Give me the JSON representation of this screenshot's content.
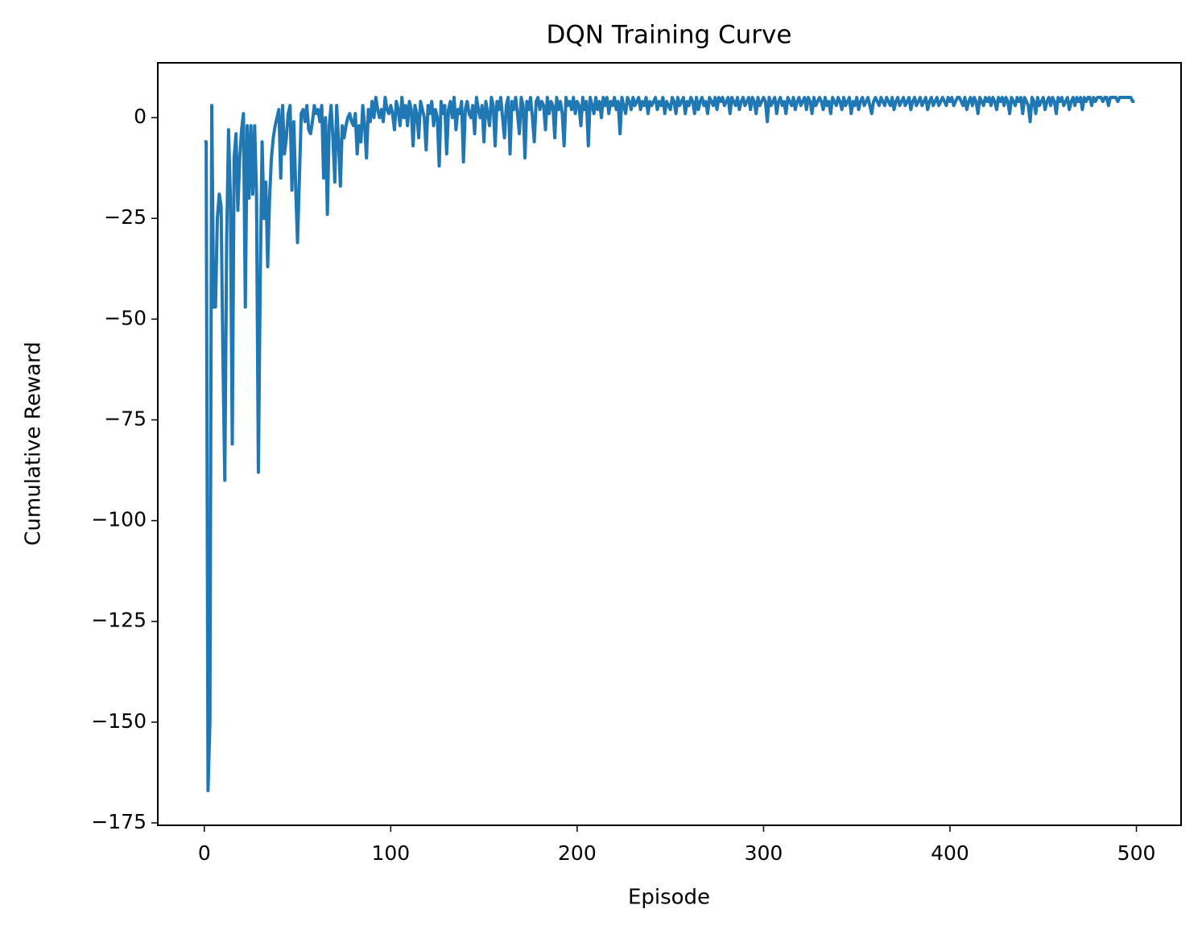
{
  "chart_data": {
    "type": "line",
    "title": "DQN Training Curve",
    "x_label": "Episode",
    "y_label": "Cumulative Reward",
    "xlim": [
      -24.95,
      523.95
    ],
    "xticks": [
      0,
      100,
      200,
      300,
      400,
      500
    ],
    "ylim": [
      -175.6,
      13.6
    ],
    "yticks": [
      0,
      {
        "value": -25,
        "label": "−25"
      },
      {
        "value": -50,
        "label": "−50"
      },
      {
        "value": -75,
        "label": "−75"
      },
      {
        "value": -100,
        "label": "−100"
      },
      {
        "value": -125,
        "label": "−125"
      },
      {
        "value": -150,
        "label": "−150"
      },
      {
        "value": -175,
        "label": "−175"
      }
    ],
    "color": "#1f77b4",
    "grid": false,
    "values": [
      -6,
      -6,
      -167,
      -150,
      3,
      -47,
      -47,
      -25,
      -19,
      -22,
      -60,
      -90,
      -30,
      -3,
      -20,
      -81,
      -10,
      -4,
      -23,
      -10,
      -3,
      1,
      -47,
      -2,
      -20,
      -2,
      -19,
      -2,
      -19,
      -88,
      -40,
      -6,
      -25,
      -16,
      -37,
      -20,
      -10,
      -5,
      -2,
      0,
      2,
      -15,
      3,
      -9,
      -5,
      1,
      3,
      -18,
      -1,
      -17,
      -31,
      -15,
      1,
      2,
      -1,
      3,
      -3,
      -4,
      -1,
      3,
      1,
      2,
      -1,
      3,
      -15,
      0,
      -24,
      -2,
      3,
      -5,
      -16,
      3,
      -6,
      -17,
      -2,
      -5,
      -2,
      0,
      1,
      -1,
      -2,
      1,
      -9,
      -2,
      -6,
      3,
      -2,
      -10,
      2,
      -1,
      4,
      0,
      5,
      2,
      0,
      2,
      -1,
      5,
      2,
      1,
      3,
      1,
      -3,
      4,
      2,
      -2,
      5,
      0,
      3,
      -2,
      4,
      2,
      -7,
      3,
      1,
      -5,
      4,
      2,
      0,
      -8,
      3,
      1,
      4,
      -2,
      2,
      0,
      -12,
      4,
      1,
      3,
      -9,
      2,
      4,
      0,
      5,
      -3,
      2,
      1,
      4,
      -11,
      2,
      4,
      1,
      0,
      3,
      -4,
      5,
      2,
      0,
      3,
      -6,
      4,
      1,
      -2,
      5,
      3,
      -7,
      4,
      2,
      5,
      0,
      -5,
      3,
      5,
      -9,
      4,
      2,
      5,
      1,
      -4,
      5,
      3,
      -10,
      4,
      2,
      5,
      0,
      -6,
      4,
      5,
      2,
      4,
      3,
      -3,
      5,
      1,
      4,
      3,
      -5,
      5,
      2,
      4,
      1,
      -7,
      5,
      3,
      4,
      2,
      5,
      1,
      4,
      3,
      -2,
      5,
      2,
      4,
      -7,
      5,
      3,
      1,
      5,
      2,
      4,
      0,
      5,
      3,
      5,
      1,
      4,
      3,
      5,
      2,
      4,
      -4,
      5,
      3,
      1,
      5,
      4,
      2,
      5,
      3,
      4,
      5,
      2,
      4,
      3,
      5,
      1,
      4,
      3,
      4,
      5,
      2,
      4,
      3,
      5,
      1,
      4,
      3,
      2,
      5,
      4,
      1,
      5,
      3,
      4,
      5,
      1,
      4,
      3,
      5,
      4,
      1,
      5,
      2,
      4,
      5,
      3,
      4,
      1,
      5,
      4,
      3,
      5,
      2,
      5,
      4,
      5,
      3,
      4,
      5,
      1,
      5,
      4,
      3,
      5,
      2,
      4,
      5,
      3,
      4,
      5,
      2,
      5,
      4,
      1,
      5,
      3,
      4,
      5,
      4,
      -1,
      5,
      3,
      4,
      5,
      1,
      4,
      5,
      3,
      4,
      1,
      5,
      4,
      3,
      5,
      2,
      4,
      5,
      3,
      4,
      5,
      2,
      5,
      4,
      1,
      5,
      3,
      4,
      5,
      4,
      2,
      5,
      3,
      4,
      1,
      5,
      4,
      3,
      5,
      4,
      2,
      5,
      3,
      4,
      5,
      1,
      4,
      3,
      5,
      2,
      4,
      5,
      3,
      4,
      5,
      3,
      1,
      4,
      5,
      4,
      3,
      5,
      4,
      3,
      5,
      4,
      3,
      5,
      2,
      4,
      5,
      3,
      4,
      5,
      3,
      4,
      5,
      2,
      4,
      5,
      3,
      4,
      5,
      3,
      4,
      5,
      2,
      4,
      5,
      3,
      4,
      5,
      3,
      4,
      5,
      4,
      3,
      5,
      4,
      5,
      3,
      4,
      5,
      5,
      4,
      3,
      5,
      2,
      4,
      5,
      3,
      5,
      4,
      1,
      5,
      4,
      3,
      5,
      4,
      5,
      3,
      5,
      4,
      2,
      5,
      4,
      5,
      3,
      5,
      4,
      1,
      5,
      4,
      3,
      5,
      4,
      5,
      1,
      5,
      4,
      3,
      -1,
      5,
      4,
      1,
      5,
      3,
      4,
      5,
      2,
      4,
      5,
      3,
      5,
      4,
      1,
      5,
      4,
      5,
      3,
      4,
      5,
      2,
      4,
      5,
      3,
      5,
      4,
      5,
      2,
      5,
      4,
      5,
      5,
      3,
      5,
      4,
      5,
      5,
      5,
      4,
      5,
      5,
      3,
      5,
      5,
      5,
      5,
      4,
      5,
      5,
      5,
      5,
      5,
      5,
      5,
      4,
      4
    ]
  }
}
